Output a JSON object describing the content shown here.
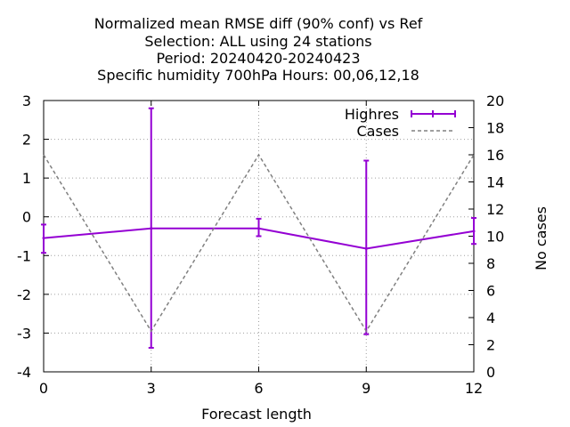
{
  "chart_data": {
    "type": "line",
    "title_lines": [
      "Normalized mean RMSE diff (90% conf) vs Ref",
      "Selection: ALL using    24 stations",
      "Period: 20240420-20240423",
      "Specific humidity 700hPa   Hours:  00,06,12,18"
    ],
    "xlabel": "Forecast length",
    "ylabel": "",
    "y2label": "No cases",
    "xlim": [
      0,
      12
    ],
    "ylim": [
      -4,
      3
    ],
    "y2lim": [
      0,
      20
    ],
    "xticks": [
      0,
      3,
      6,
      9,
      12
    ],
    "yticks": [
      -4,
      -3,
      -2,
      -1,
      0,
      1,
      2,
      3
    ],
    "y2ticks": [
      0,
      2,
      4,
      6,
      8,
      10,
      12,
      14,
      16,
      18,
      20
    ],
    "grid": true,
    "legend_position": "top-right",
    "series": [
      {
        "name": "Highres",
        "axis": "y",
        "style": "line-errorbars",
        "color": "#9400d3",
        "x": [
          0,
          3,
          6,
          9,
          12
        ],
        "y": [
          -0.55,
          -0.3,
          -0.3,
          -0.82,
          -0.37
        ],
        "err_low": [
          -0.93,
          -3.38,
          -0.5,
          -3.03,
          -0.7
        ],
        "err_high": [
          -0.2,
          2.8,
          -0.05,
          1.45,
          -0.03
        ]
      },
      {
        "name": "Cases",
        "axis": "y2",
        "style": "dashed",
        "color": "#808080",
        "x": [
          0,
          3,
          6,
          9,
          12
        ],
        "y": [
          16,
          3,
          16,
          3,
          16
        ]
      }
    ]
  }
}
